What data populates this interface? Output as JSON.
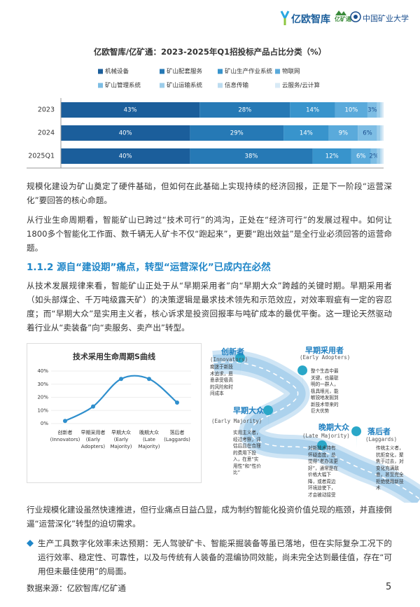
{
  "header": {
    "brand": "亿欧智库",
    "partner": "亿矿通",
    "university": "中国矿业大学"
  },
  "chart_data": [
    {
      "type": "bar",
      "orientation": "horizontal",
      "stacked": true,
      "title": "亿欧智库/亿矿通：2023-2025年Q1招投标产品占比分类（%）",
      "categories": [
        "2023",
        "2024",
        "2025Q1"
      ],
      "xlim": [
        0,
        100
      ],
      "series": [
        {
          "name": "机械设备",
          "color": "#1b5e9b",
          "values": [
            43,
            40,
            40
          ],
          "value_labels": [
            "43%",
            "40%",
            "40%"
          ]
        },
        {
          "name": "矿山配套服务",
          "color": "#2679b5",
          "values": [
            28,
            29,
            38
          ],
          "value_labels": [
            "28%",
            "29%",
            "38%"
          ]
        },
        {
          "name": "矿山生产作业系统",
          "color": "#3894cc",
          "values": [
            14,
            14,
            12
          ],
          "value_labels": [
            "14%",
            "14%",
            "12%"
          ]
        },
        {
          "name": "物联网",
          "color": "#5aaadb",
          "values": [
            10,
            9,
            6
          ],
          "value_labels": [
            "10%",
            "9%",
            "6%"
          ]
        },
        {
          "name": "矿山管理系统",
          "color": "#7dbde4",
          "values": [
            3,
            6,
            2
          ],
          "value_labels": [
            "3%",
            "6%",
            "2%"
          ]
        },
        {
          "name": "矿山运输系统",
          "color": "#9ccdea",
          "values": [
            1,
            1,
            1
          ],
          "value_labels": [
            null,
            null,
            null
          ]
        },
        {
          "name": "信息传输",
          "color": "#bcdcf0",
          "values": [
            0.5,
            0.5,
            0.5
          ],
          "value_labels": [
            null,
            null,
            null
          ]
        },
        {
          "name": "云服务/云计算",
          "color": "#d8eaf6",
          "values": [
            0.5,
            0.5,
            0.5
          ],
          "value_labels": [
            null,
            null,
            null
          ]
        }
      ]
    },
    {
      "type": "line",
      "title": "技术采用生命周期S曲线",
      "categories": [
        "创新者\n(Innovators)",
        "早期采用者\n(Early\nAdopters)",
        "早期大众\n(Early\nMajority)",
        "晚期大众\n(Late\nMajority)",
        "落后者\n(Laggards)"
      ],
      "values": [
        2,
        13,
        34,
        34,
        16
      ],
      "color": "#2f8fcd",
      "ylim": [
        0,
        40
      ],
      "yticks": [
        {
          "value": 0,
          "label": "0%"
        },
        {
          "value": 10,
          "label": "10%"
        },
        {
          "value": 20,
          "label": "20%"
        },
        {
          "value": 30,
          "label": "30%"
        },
        {
          "value": 40,
          "label": "40%"
        }
      ],
      "grid": true
    }
  ],
  "paragraphs": [
    "规模化建设为矿山奠定了硬件基础，但如何在此基础上实现持续的经济回报，正是下一阶段“运营深化”要回答的核心命题。",
    "从行业生命周期看，智能矿山已跨过“技术可行”的鸿沟，正处在“经济可行”的发展过程中。如何让1800多个智能化工作面、数千辆无人矿卡不仅“跑起来”，更要“跑出效益”是全行业必须回答的运营命题。",
    "从技术发展规律来看，智能矿山正处于从“早期采用者”向“早期大众”跨越的关键时期。早期采用者（如头部煤企、千万吨级露天矿）的决策逻辑是最求技术领先和示范效应，对效率瑕疵有一定的容忍度；而“早期大众”是实用主义者，核心诉求是投资回报率与吨矿成本的最优平衡。这一理论天然驱动着行业从“卖装备”向“卖服务、卖产出”转型。",
    "行业规模化建设虽然快速推进，但行业痛点日益凸显，成为制约智能化投资价值兑现的瓶颈，并直接倒逼“运营深化”转型的迫切需求。"
  ],
  "section_heading": "1.1.2 源自“建设期”痛点，转型“运营深化”已成内在必然",
  "bullet": "生产工具数字化效率未达预期：无人驾驶矿卡、智能采掘装备等虽已落地，但在实际复杂工况下的运行效率、稳定性、可靠性，以及与传统有人装备的混编协同效能，尚未完全达到最佳值，存在“可用但未最佳使用”的局面。",
  "diagram": {
    "stages": [
      {
        "name": "创新者",
        "name_en": "(Innovators)",
        "description": "痴迷于新技术追求，愿意承受极高的风险和时间成本"
      },
      {
        "name": "早期采用者",
        "name_en": "(Early Adopters)",
        "description": "整个生态中最关键，也最聪明的一群人，极具眼光，能敏锐地发掘到新技术带来的巨大优势"
      },
      {
        "name": "早期大众",
        "name_en": "(Early Majority)",
        "description": "实用主义者，经过考察，评估后且在合理的费用下投入，在意“实用性”和“性价比”"
      },
      {
        "name": "晚期大众",
        "name_en": "(Late Majority)",
        "description": "对新技术持有怀疑态度，总觉得“老办法更好”，通常是在价格大幅下降，或者周边环境迫使下，才会被动接受"
      },
      {
        "name": "落后者",
        "name_en": "(Laggards)",
        "description": "传统主义者，抗拒变化，聚焦于过去，对变化充满敌意，甚至完全拒绝使用新技术"
      }
    ]
  },
  "footer": {
    "source": "数据来源：亿欧智库/亿矿通",
    "page": "5"
  }
}
